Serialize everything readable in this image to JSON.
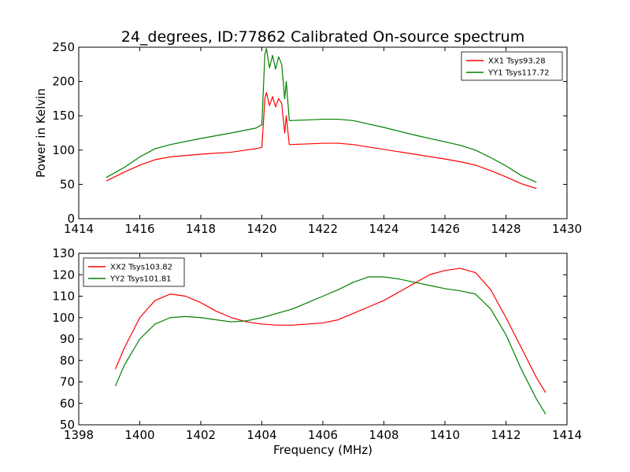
{
  "figure": {
    "title": "24_degrees, ID:77862 Calibrated On-source spectrum"
  },
  "chart_data": [
    {
      "type": "line",
      "title": "24_degrees, ID:77862 Calibrated On-source spectrum",
      "xlabel": "",
      "ylabel": "Power in Kelvin",
      "xlim": [
        1414,
        1430
      ],
      "ylim": [
        0,
        250
      ],
      "x_ticks": [
        "1414",
        "1416",
        "1418",
        "1420",
        "1422",
        "1424",
        "1426",
        "1428",
        "1430"
      ],
      "y_ticks": [
        "0",
        "50",
        "100",
        "150",
        "200",
        "250"
      ],
      "grid": false,
      "legend": "upper right",
      "series": [
        {
          "name": "XX1 Tsys93.28",
          "color": "#ff0000",
          "x": [
            1414.9,
            1415.5,
            1416.0,
            1416.5,
            1417.0,
            1418.0,
            1419.0,
            1419.8,
            1420.0,
            1420.1,
            1420.15,
            1420.25,
            1420.35,
            1420.45,
            1420.55,
            1420.65,
            1420.75,
            1420.8,
            1420.9,
            1421.5,
            1422.0,
            1422.5,
            1423.0,
            1424.0,
            1425.0,
            1426.0,
            1426.5,
            1427.0,
            1427.5,
            1428.0,
            1428.5,
            1429.0
          ],
          "y": [
            55,
            68,
            78,
            86,
            90,
            94,
            97,
            102,
            104,
            175,
            184,
            165,
            178,
            163,
            175,
            168,
            125,
            150,
            108,
            109,
            110,
            110,
            108,
            101,
            94,
            87,
            83,
            78,
            70,
            61,
            51,
            44
          ]
        },
        {
          "name": "YY1 Tsys117.72",
          "color": "#008000",
          "x": [
            1414.9,
            1415.5,
            1416.0,
            1416.5,
            1417.0,
            1418.0,
            1419.0,
            1419.8,
            1420.0,
            1420.1,
            1420.15,
            1420.25,
            1420.35,
            1420.45,
            1420.55,
            1420.65,
            1420.75,
            1420.8,
            1420.9,
            1421.5,
            1422.0,
            1422.5,
            1423.0,
            1424.0,
            1425.0,
            1426.0,
            1426.5,
            1427.0,
            1427.5,
            1428.0,
            1428.5,
            1429.0
          ],
          "y": [
            60,
            75,
            90,
            102,
            108,
            117,
            125,
            132,
            137,
            240,
            248,
            220,
            238,
            218,
            236,
            225,
            175,
            200,
            143,
            144,
            145,
            145,
            143,
            133,
            122,
            112,
            107,
            100,
            89,
            77,
            63,
            53
          ]
        }
      ]
    },
    {
      "type": "line",
      "title": "",
      "xlabel": "Frequency (MHz)",
      "ylabel": "",
      "xlim": [
        1398,
        1414
      ],
      "ylim": [
        50,
        130
      ],
      "x_ticks": [
        "1398",
        "1400",
        "1402",
        "1404",
        "1406",
        "1408",
        "1410",
        "1412",
        "1414"
      ],
      "y_ticks": [
        "50",
        "60",
        "70",
        "80",
        "90",
        "100",
        "110",
        "120",
        "130"
      ],
      "grid": false,
      "legend": "upper left",
      "series": [
        {
          "name": "XX2 Tsys103.82",
          "color": "#ff0000",
          "x": [
            1399.2,
            1399.5,
            1400.0,
            1400.5,
            1401.0,
            1401.5,
            1402.0,
            1402.5,
            1403.0,
            1403.5,
            1404.0,
            1404.5,
            1405.0,
            1405.5,
            1406.0,
            1406.5,
            1407.0,
            1407.5,
            1408.0,
            1408.5,
            1409.0,
            1409.5,
            1410.0,
            1410.5,
            1411.0,
            1411.5,
            1412.0,
            1412.5,
            1413.0,
            1413.3
          ],
          "y": [
            76,
            86,
            100,
            108,
            111,
            110,
            107,
            103,
            100,
            98,
            97,
            96.5,
            96.5,
            97,
            97.5,
            99,
            102,
            105,
            108,
            112,
            116,
            120,
            122,
            123,
            121,
            113,
            100,
            86,
            72,
            65
          ]
        },
        {
          "name": "YY2 Tsys101.81",
          "color": "#008000",
          "x": [
            1399.2,
            1399.5,
            1400.0,
            1400.5,
            1401.0,
            1401.5,
            1402.0,
            1402.5,
            1403.0,
            1403.5,
            1404.0,
            1404.5,
            1405.0,
            1405.5,
            1406.0,
            1406.5,
            1407.0,
            1407.5,
            1408.0,
            1408.5,
            1409.0,
            1409.5,
            1410.0,
            1410.5,
            1411.0,
            1411.5,
            1412.0,
            1412.5,
            1413.0,
            1413.3
          ],
          "y": [
            68,
            78,
            90,
            97,
            100,
            100.5,
            100,
            99,
            98,
            98.5,
            100,
            102,
            104,
            107,
            110,
            113,
            116.5,
            119,
            119,
            118,
            116.5,
            115,
            113.5,
            112.5,
            111,
            104,
            92,
            76,
            62,
            55
          ]
        }
      ]
    }
  ]
}
